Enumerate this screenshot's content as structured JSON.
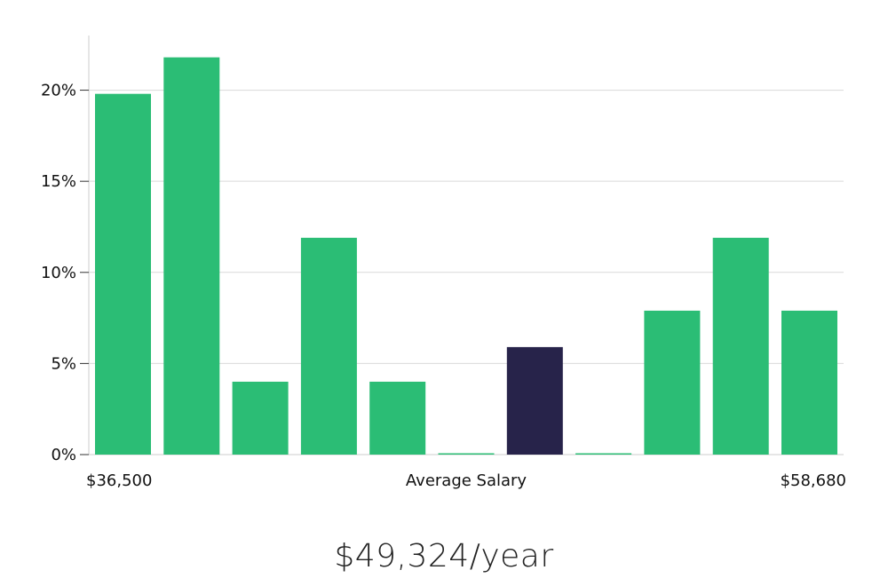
{
  "chart_data": {
    "type": "bar",
    "title": "",
    "xlabel": "Average Salary",
    "ylabel": "",
    "x_min_label": "$36,500",
    "x_max_label": "$58,680",
    "categories": [
      "1",
      "2",
      "3",
      "4",
      "5",
      "6",
      "7",
      "8",
      "9",
      "10",
      "11"
    ],
    "values": [
      19.8,
      21.8,
      4.0,
      11.9,
      4.0,
      0,
      5.9,
      0,
      7.9,
      11.9,
      7.9
    ],
    "highlight_index": 6,
    "ylim": [
      0,
      23
    ],
    "yticks": [
      0,
      5,
      10,
      15,
      20
    ],
    "ytick_labels": [
      "0%",
      "5%",
      "10%",
      "15%",
      "20%"
    ],
    "grid": true,
    "colors": {
      "bar": "#2bbd75",
      "highlight": "#27234a",
      "grid": "#d9d9d9",
      "axis": "#cccccc"
    }
  },
  "average_salary": "$49,324/year"
}
